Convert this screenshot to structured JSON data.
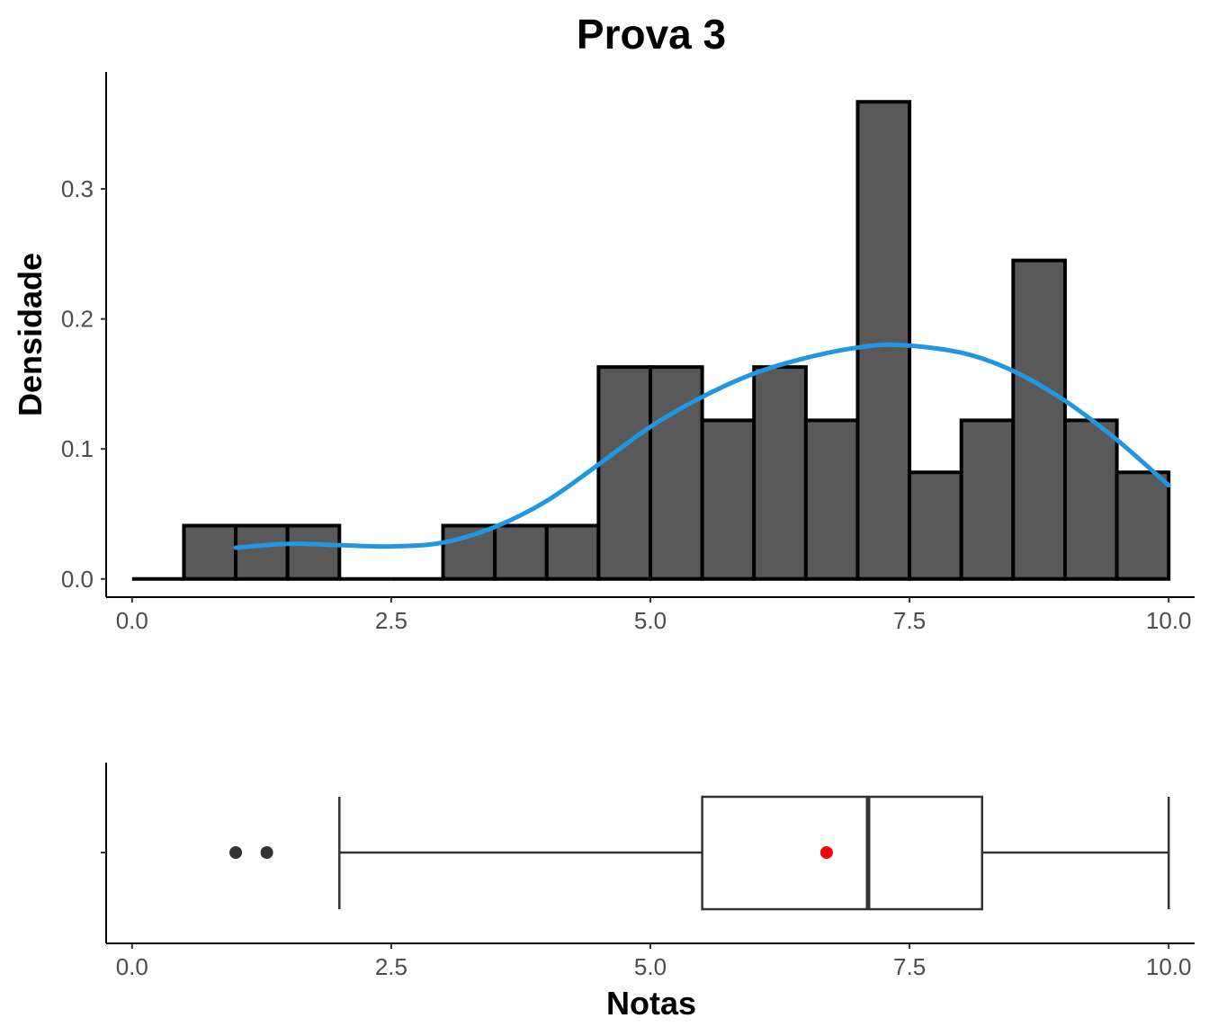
{
  "chart_data": [
    {
      "type": "histogram",
      "title": "Prova 3",
      "xlabel": "",
      "ylabel": "Densidade",
      "xlim": [
        -0.25,
        10.25
      ],
      "ylim": [
        -0.014,
        0.39
      ],
      "xticks": [
        0.0,
        2.5,
        5.0,
        7.5,
        10.0
      ],
      "xtick_labels": [
        "0.0",
        "2.5",
        "5.0",
        "7.5",
        "10.0"
      ],
      "yticks": [
        0.0,
        0.1,
        0.2,
        0.3
      ],
      "ytick_labels": [
        "0.0",
        "0.1",
        "0.2",
        "0.3"
      ],
      "bin_width": 0.5,
      "bins": [
        {
          "x0": 0.0,
          "x1": 0.5,
          "density": 0.0
        },
        {
          "x0": 0.5,
          "x1": 1.0,
          "density": 0.041
        },
        {
          "x0": 1.0,
          "x1": 1.5,
          "density": 0.041
        },
        {
          "x0": 1.5,
          "x1": 2.0,
          "density": 0.041
        },
        {
          "x0": 2.0,
          "x1": 2.5,
          "density": 0.0
        },
        {
          "x0": 2.5,
          "x1": 3.0,
          "density": 0.0
        },
        {
          "x0": 3.0,
          "x1": 3.5,
          "density": 0.041
        },
        {
          "x0": 3.5,
          "x1": 4.0,
          "density": 0.041
        },
        {
          "x0": 4.0,
          "x1": 4.5,
          "density": 0.041
        },
        {
          "x0": 4.5,
          "x1": 5.0,
          "density": 0.163
        },
        {
          "x0": 5.0,
          "x1": 5.5,
          "density": 0.163
        },
        {
          "x0": 5.5,
          "x1": 6.0,
          "density": 0.122
        },
        {
          "x0": 6.0,
          "x1": 6.5,
          "density": 0.163
        },
        {
          "x0": 6.5,
          "x1": 7.0,
          "density": 0.122
        },
        {
          "x0": 7.0,
          "x1": 7.5,
          "density": 0.367
        },
        {
          "x0": 7.5,
          "x1": 8.0,
          "density": 0.082
        },
        {
          "x0": 8.0,
          "x1": 8.5,
          "density": 0.122
        },
        {
          "x0": 8.5,
          "x1": 9.0,
          "density": 0.245
        },
        {
          "x0": 9.0,
          "x1": 9.5,
          "density": 0.122
        },
        {
          "x0": 9.5,
          "x1": 10.0,
          "density": 0.082
        }
      ],
      "density_curve": {
        "x": [
          1.0,
          1.5,
          2.0,
          2.5,
          3.0,
          3.5,
          4.0,
          4.5,
          5.0,
          5.5,
          6.0,
          6.5,
          7.0,
          7.4,
          8.0,
          8.5,
          9.0,
          9.5,
          10.0
        ],
        "y": [
          0.024,
          0.027,
          0.026,
          0.025,
          0.028,
          0.04,
          0.06,
          0.088,
          0.117,
          0.14,
          0.158,
          0.17,
          0.178,
          0.18,
          0.174,
          0.16,
          0.137,
          0.107,
          0.072
        ]
      },
      "colors": {
        "bar_fill": "#595959",
        "bar_stroke": "#000000",
        "curve": "#2196e3"
      }
    },
    {
      "type": "boxplot",
      "xlabel": "Notas",
      "xlim": [
        -0.25,
        10.25
      ],
      "xticks": [
        0.0,
        2.5,
        5.0,
        7.5,
        10.0
      ],
      "xtick_labels": [
        "0.0",
        "2.5",
        "5.0",
        "7.5",
        "10.0"
      ],
      "whisker_low": 2.0,
      "q1": 5.5,
      "median": 7.1,
      "q3": 8.2,
      "whisker_high": 10.0,
      "mean": 6.7,
      "outliers": [
        1.0,
        1.3
      ],
      "colors": {
        "box_stroke": "#333333",
        "mean_point": "#ff0000",
        "outlier": "#333333"
      }
    }
  ]
}
